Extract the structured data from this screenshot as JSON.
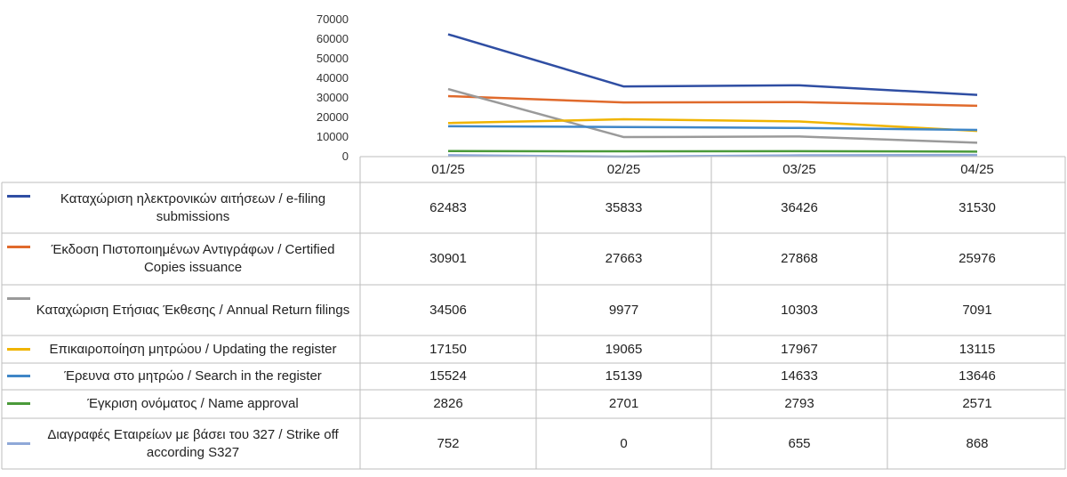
{
  "chart_data": {
    "type": "line",
    "categories": [
      "01/25",
      "02/25",
      "03/25",
      "04/25"
    ],
    "ylim": [
      0,
      70000
    ],
    "yticks": [
      "0",
      "10000",
      "20000",
      "30000",
      "40000",
      "50000",
      "60000",
      "70000"
    ],
    "grid": false,
    "legend": "data-table",
    "series": [
      {
        "name": "Καταχώριση ηλεκτρονικών αιτήσεων / e-filing submissions",
        "color": "#2f4ea3",
        "values": [
          62483,
          35833,
          36426,
          31530
        ],
        "display": [
          "62483",
          "35833",
          "36426",
          "31530"
        ]
      },
      {
        "name": "Έκδοση Πιστοποιημένων Αντιγράφων / Certified Copies issuance",
        "color": "#e06a2c",
        "values": [
          30901,
          27663,
          27868,
          25976
        ],
        "display": [
          "30901",
          "27663",
          "27868",
          "25976"
        ]
      },
      {
        "name": "Καταχώριση Ετήσιας Έκθεσης / Annual Return filings",
        "color": "#9a9a9a",
        "values": [
          34506,
          9977,
          10303,
          7091
        ],
        "display": [
          "34506",
          "9977",
          "10303",
          "7091"
        ]
      },
      {
        "name": "Επικαιροποίηση μητρώου / Updating the register",
        "color": "#f0b400",
        "values": [
          17150,
          19065,
          17967,
          13115
        ],
        "display": [
          "17150",
          "19065",
          "17967",
          "13115"
        ]
      },
      {
        "name": "Έρευνα στο μητρώο / Search in the register",
        "color": "#3f86c7",
        "values": [
          15524,
          15139,
          14633,
          13646
        ],
        "display": [
          "15524",
          "15139",
          "14633",
          "13646"
        ]
      },
      {
        "name": "Έγκριση ονόματος / Name approval",
        "color": "#4a9a3a",
        "values": [
          2826,
          2701,
          2793,
          2571
        ],
        "display": [
          "2826",
          "2701",
          "2793",
          "2571"
        ]
      },
      {
        "name": "Διαγραφές Εταιρείων με βάσει του 327 / Strike off according S327",
        "color": "#8fa8d8",
        "values": [
          752,
          0,
          655,
          868
        ],
        "display": [
          "752",
          "0",
          "655",
          "868"
        ]
      }
    ]
  }
}
